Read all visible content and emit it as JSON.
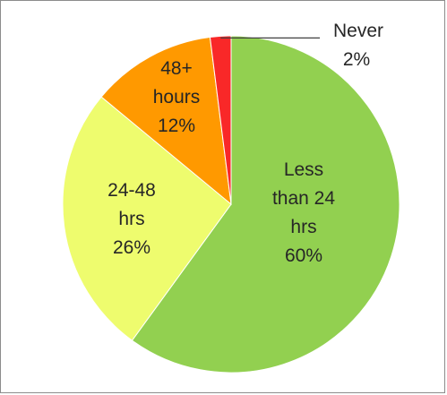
{
  "chart_data": {
    "type": "pie",
    "title": "",
    "categories": [
      "Less than 24 hrs",
      "24-48 hrs",
      "48+ hours",
      "Never"
    ],
    "values": [
      60,
      26,
      12,
      2
    ],
    "units": "%",
    "slices": [
      {
        "label_lines": [
          "Less",
          "than 24",
          "hrs"
        ],
        "pct": "60%",
        "value": 60,
        "color": "#92d050"
      },
      {
        "label_lines": [
          "24-48",
          "hrs"
        ],
        "pct": "26%",
        "value": 26,
        "color": "#eefc6e"
      },
      {
        "label_lines": [
          "48+",
          "hours"
        ],
        "pct": "12%",
        "value": 12,
        "color": "#ff9900"
      },
      {
        "label_lines": [
          "Never"
        ],
        "pct": "2%",
        "value": 2,
        "color": "#f92828"
      }
    ],
    "start_angle_deg": 0,
    "direction": "clockwise",
    "legend": "none",
    "labels_inside": true
  }
}
